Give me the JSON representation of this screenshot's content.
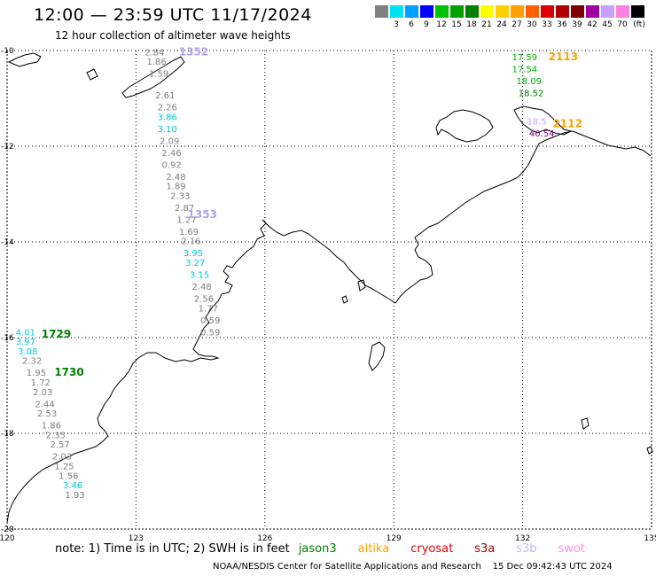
{
  "header": {
    "title": "12:00 — 23:59 UTC 11/17/2024",
    "subtitle": "12 hour collection of altimeter wave heights"
  },
  "legend": {
    "unit": "(ft)",
    "bins": [
      {
        "label": "",
        "color": "#808080"
      },
      {
        "label": "3",
        "color": "#00e0f0"
      },
      {
        "label": "6",
        "color": "#00a0ff"
      },
      {
        "label": "9",
        "color": "#0000ff"
      },
      {
        "label": "12",
        "color": "#00c000"
      },
      {
        "label": "15",
        "color": "#00a000"
      },
      {
        "label": "18",
        "color": "#008000"
      },
      {
        "label": "21",
        "color": "#ffff00"
      },
      {
        "label": "24",
        "color": "#ffd000"
      },
      {
        "label": "27",
        "color": "#ffa000"
      },
      {
        "label": "30",
        "color": "#ff6000"
      },
      {
        "label": "33",
        "color": "#e00000"
      },
      {
        "label": "36",
        "color": "#b00000"
      },
      {
        "label": "39",
        "color": "#800000"
      },
      {
        "label": "42",
        "color": "#a000a0"
      },
      {
        "label": "45",
        "color": "#c8a0ff"
      },
      {
        "label": "70",
        "color": "#ff80e0"
      },
      {
        "label": "",
        "color": "#000000"
      }
    ]
  },
  "map": {
    "lon_range": [
      120,
      135
    ],
    "lat_range": [
      -20,
      -10
    ],
    "lon_ticks": [
      "120",
      "123",
      "126",
      "129",
      "132",
      "135"
    ],
    "lat_ticks": [
      "-10",
      "-12",
      "-14",
      "-16",
      "-18",
      "-20"
    ]
  },
  "passes": [
    {
      "label": "1353",
      "color": "#b0a0f0",
      "lon": 124.2,
      "lat": -13.5
    },
    {
      "label": "1352",
      "color": "#b0a0f0",
      "lon": 124.0,
      "lat": -10.1
    },
    {
      "label": "2113",
      "color": "#ffa000",
      "lon": 132.6,
      "lat": -10.2
    },
    {
      "label": "2112",
      "color": "#ffa000",
      "lon": 132.7,
      "lat": -11.6
    },
    {
      "label": "1729",
      "color": "#008000",
      "lon": 120.8,
      "lat": -16.0
    },
    {
      "label": "1730",
      "color": "#008000",
      "lon": 121.1,
      "lat": -16.8
    }
  ],
  "observations": [
    {
      "value": "2.84",
      "color": "#808080",
      "lon": 123.2,
      "lat": -10.1
    },
    {
      "value": "1.86",
      "color": "#808080",
      "lon": 123.25,
      "lat": -10.3
    },
    {
      "value": "1.59",
      "color": "#808080",
      "lon": 123.3,
      "lat": -10.55
    },
    {
      "value": "2.61",
      "color": "#808080",
      "lon": 123.45,
      "lat": -11.0
    },
    {
      "value": "2.26",
      "color": "#808080",
      "lon": 123.5,
      "lat": -11.25
    },
    {
      "value": "3.86",
      "color": "#00c8e0",
      "lon": 123.5,
      "lat": -11.45
    },
    {
      "value": "3.10",
      "color": "#00c8e0",
      "lon": 123.5,
      "lat": -11.7
    },
    {
      "value": "2.09",
      "color": "#808080",
      "lon": 123.55,
      "lat": -11.95
    },
    {
      "value": "2.46",
      "color": "#808080",
      "lon": 123.6,
      "lat": -12.2
    },
    {
      "value": "0.92",
      "color": "#808080",
      "lon": 123.6,
      "lat": -12.45
    },
    {
      "value": "2.48",
      "color": "#808080",
      "lon": 123.7,
      "lat": -12.7
    },
    {
      "value": "1.89",
      "color": "#808080",
      "lon": 123.7,
      "lat": -12.9
    },
    {
      "value": "2.33",
      "color": "#808080",
      "lon": 123.8,
      "lat": -13.1
    },
    {
      "value": "2.87",
      "color": "#808080",
      "lon": 123.9,
      "lat": -13.35
    },
    {
      "value": "1.27",
      "color": "#808080",
      "lon": 123.95,
      "lat": -13.6
    },
    {
      "value": "1.69",
      "color": "#808080",
      "lon": 124.0,
      "lat": -13.85
    },
    {
      "value": "2.16",
      "color": "#808080",
      "lon": 124.05,
      "lat": -14.05
    },
    {
      "value": "3.95",
      "color": "#00c8e0",
      "lon": 124.1,
      "lat": -14.3
    },
    {
      "value": "3.27",
      "color": "#00c8e0",
      "lon": 124.15,
      "lat": -14.5
    },
    {
      "value": "3.15",
      "color": "#00c8e0",
      "lon": 124.25,
      "lat": -14.75
    },
    {
      "value": "2.48",
      "color": "#808080",
      "lon": 124.3,
      "lat": -15.0
    },
    {
      "value": "2.56",
      "color": "#808080",
      "lon": 124.35,
      "lat": -15.25
    },
    {
      "value": "1.77",
      "color": "#808080",
      "lon": 124.45,
      "lat": -15.45
    },
    {
      "value": "0.59",
      "color": "#808080",
      "lon": 124.5,
      "lat": -15.7
    },
    {
      "value": "0.59",
      "color": "#808080",
      "lon": 124.5,
      "lat": -15.95
    },
    {
      "value": "4.01",
      "color": "#00c8e0",
      "lon": 120.2,
      "lat": -15.95
    },
    {
      "value": "3.97",
      "color": "#00c8e0",
      "lon": 120.2,
      "lat": -16.15
    },
    {
      "value": "3.08",
      "color": "#00c8e0",
      "lon": 120.25,
      "lat": -16.35
    },
    {
      "value": "2.32",
      "color": "#808080",
      "lon": 120.35,
      "lat": -16.55
    },
    {
      "value": "1.95",
      "color": "#808080",
      "lon": 120.45,
      "lat": -16.8
    },
    {
      "value": "1.72",
      "color": "#808080",
      "lon": 120.55,
      "lat": -17.0
    },
    {
      "value": "2.03",
      "color": "#808080",
      "lon": 120.6,
      "lat": -17.2
    },
    {
      "value": "2.44",
      "color": "#808080",
      "lon": 120.65,
      "lat": -17.45
    },
    {
      "value": "2.53",
      "color": "#808080",
      "lon": 120.7,
      "lat": -17.65
    },
    {
      "value": "1.86",
      "color": "#808080",
      "lon": 120.8,
      "lat": -17.9
    },
    {
      "value": "2.35",
      "color": "#808080",
      "lon": 120.9,
      "lat": -18.1
    },
    {
      "value": "2.57",
      "color": "#808080",
      "lon": 121.0,
      "lat": -18.3
    },
    {
      "value": "2.03",
      "color": "#808080",
      "lon": 121.05,
      "lat": -18.55
    },
    {
      "value": "1.25",
      "color": "#808080",
      "lon": 121.1,
      "lat": -18.75
    },
    {
      "value": "1.56",
      "color": "#808080",
      "lon": 121.2,
      "lat": -18.95
    },
    {
      "value": "3.46",
      "color": "#00c8e0",
      "lon": 121.3,
      "lat": -19.15
    },
    {
      "value": "1.93",
      "color": "#808080",
      "lon": 121.35,
      "lat": -19.35
    },
    {
      "value": "17.59",
      "color": "#00b000",
      "lon": 131.75,
      "lat": -10.2
    },
    {
      "value": "17.54",
      "color": "#00b000",
      "lon": 131.75,
      "lat": -10.45
    },
    {
      "value": "18.09",
      "color": "#00b000",
      "lon": 131.85,
      "lat": -10.7
    },
    {
      "value": "18.52",
      "color": "#008000",
      "lon": 131.9,
      "lat": -10.95
    },
    {
      "value": "18.5",
      "color": "#c8a0ff",
      "lon": 132.1,
      "lat": -11.55
    },
    {
      "value": "40.54",
      "color": "#800080",
      "lon": 132.15,
      "lat": -11.8
    }
  ],
  "note": {
    "text": "note:  1) Time is in UTC; 2) SWH is in feet",
    "satellites": [
      {
        "name": "jason3",
        "color": "#008000"
      },
      {
        "name": "altika",
        "color": "#ffa000"
      },
      {
        "name": "cryosat",
        "color": "#e00000"
      },
      {
        "name": "s3a",
        "color": "#b00000"
      },
      {
        "name": "s3b",
        "color": "#c8b0ff"
      },
      {
        "name": "swot",
        "color": "#ff90e0"
      }
    ]
  },
  "footer": {
    "credit": "NOAA/NESDIS Center for Satellite Applications and Research",
    "timestamp": "15 Dec 09:42:43 UTC 2024"
  }
}
